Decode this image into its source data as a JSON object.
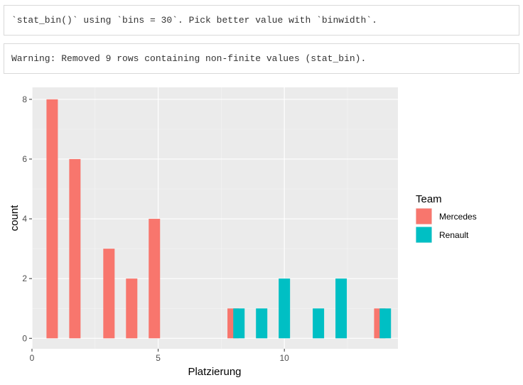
{
  "messages": [
    "`stat_bin()` using `bins = 30`. Pick better value with `binwidth`.",
    "Warning: Removed 9 rows containing non-finite values (stat_bin)."
  ],
  "chart_data": {
    "type": "bar",
    "subtype": "histogram",
    "title": "",
    "xlabel": "Platzierung",
    "ylabel": "count",
    "xlim": [
      0,
      14.5
    ],
    "ylim": [
      -0.35,
      8.4
    ],
    "x_ticks": [
      0,
      5,
      10
    ],
    "y_ticks": [
      0,
      2,
      4,
      6,
      8
    ],
    "bin_width": 0.45,
    "grid": true,
    "legend": {
      "title": "Team",
      "position": "right"
    },
    "series": [
      {
        "name": "Mercedes",
        "color": "#F8766D",
        "bins": [
          {
            "x": 0.8,
            "count": 8
          },
          {
            "x": 1.7,
            "count": 6
          },
          {
            "x": 3.05,
            "count": 3
          },
          {
            "x": 3.95,
            "count": 2
          },
          {
            "x": 4.85,
            "count": 4
          },
          {
            "x": 7.97,
            "count": 1
          },
          {
            "x": 13.78,
            "count": 1
          }
        ]
      },
      {
        "name": "Renault",
        "color": "#00BFC4",
        "bins": [
          {
            "x": 8.2,
            "count": 1
          },
          {
            "x": 9.1,
            "count": 1
          },
          {
            "x": 10.0,
            "count": 2
          },
          {
            "x": 11.35,
            "count": 1
          },
          {
            "x": 12.25,
            "count": 2
          },
          {
            "x": 14.0,
            "count": 1
          }
        ]
      }
    ]
  }
}
